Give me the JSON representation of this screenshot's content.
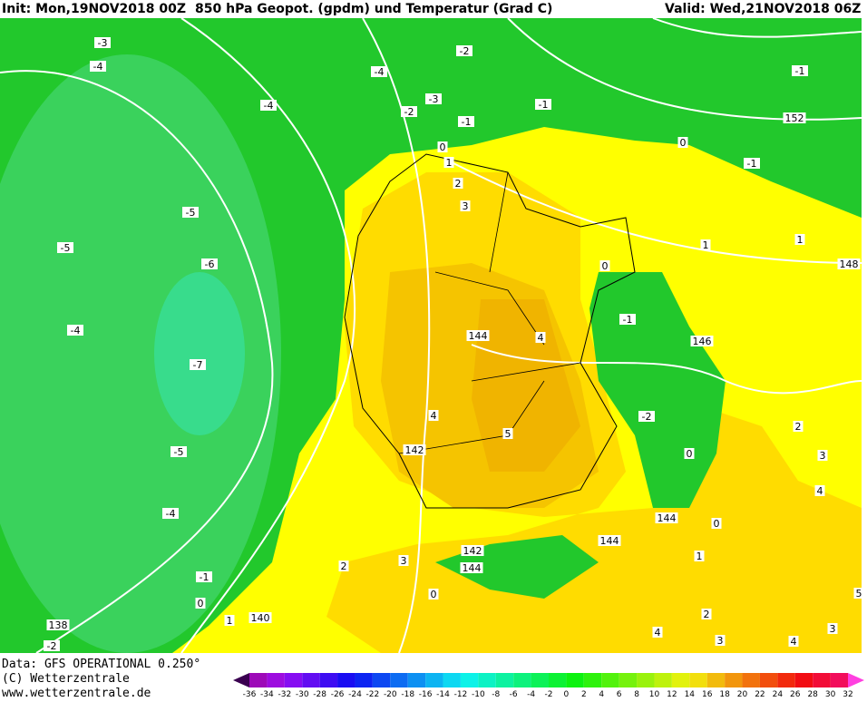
{
  "header": {
    "init": "Init: Mon,19NOV2018 00Z",
    "title": "850 hPa Geopot. (gpdm) und Temperatur (Grad C)",
    "valid": "Valid: Wed,21NOV2018 06Z"
  },
  "footer": {
    "data": "Data: GFS OPERATIONAL 0.250°",
    "copyright": "(C) Wetterzentrale",
    "url": "www.wetterzentrale.de"
  },
  "legend": {
    "ticks": [
      -36,
      -34,
      -32,
      -30,
      -28,
      -26,
      -24,
      -22,
      -20,
      -18,
      -16,
      -14,
      -12,
      -10,
      -8,
      -6,
      -4,
      -2,
      0,
      2,
      4,
      6,
      8,
      10,
      12,
      14,
      16,
      18,
      20,
      22,
      24,
      26,
      28,
      30,
      32
    ]
  },
  "map": {
    "contour_labels": [
      "-3",
      "-4",
      "-2",
      "-4",
      "-4",
      "-2",
      "-3",
      "-1",
      "-1",
      "-1",
      "152",
      "0",
      "1",
      "0",
      "-1",
      "2",
      "3",
      "-5",
      "-5",
      "-6",
      "1",
      "1",
      "148",
      "0",
      "-1",
      "-4",
      "144",
      "4",
      "146",
      "-7",
      "-2",
      "4",
      "5",
      "142",
      "-5",
      "0",
      "2",
      "3",
      "4",
      "-4",
      "144",
      "0",
      "144",
      "142",
      "144",
      "-1",
      "0",
      "0",
      "140",
      "138",
      "1",
      "3",
      "2",
      "4",
      "3",
      "4",
      "3",
      "1",
      "2",
      "5",
      "-2"
    ]
  }
}
